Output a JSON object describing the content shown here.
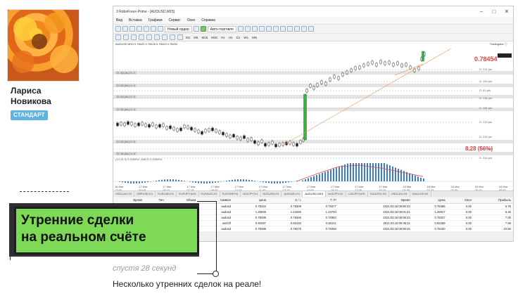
{
  "profile": {
    "name": "Лариса\nНовикова",
    "badge": "СТАНДАРТ"
  },
  "terminal": {
    "title": "3 RoboForex-Prime - [AUDUSD,M15]",
    "menu": [
      "Вид",
      "Вставка",
      "Графики",
      "Сервис",
      "Окно",
      "Справка"
    ],
    "toolbar_new_order": "Новый ордер",
    "toolbar_autotrade": "Авто-торговля",
    "timeframes": [
      "M1",
      "M5",
      "M15",
      "M30",
      "H1",
      "H4",
      "D1",
      "W1",
      "MN"
    ],
    "chart_header": "AUDUSD,M15  0.78423 0.78426 0.78423 0.78454",
    "tradingcentral": "Tradingator ⓘ",
    "current_price": "0.78454",
    "pnl": "8.28 (56%)",
    "level_labels": [
      "D: 221 pts",
      "D: 184 pts",
      "D: 91 pts",
      "D: 136 pts",
      "D: 181 pts",
      "D: 229 pts",
      "D: 233 pts",
      "D: 272 pts",
      "D: 316 pts"
    ],
    "left_labels": [
      "D: 36 pts | h: 2",
      "D: 36 pts | h: 4",
      "D: 36 pts | h: 3",
      "D: 36 pts | h: 4",
      "D: 36 pts | h: 5",
      "D: 36 pts | h: 6"
    ],
    "indicator_label": "(12,26,9) 0.000894 -MACD 0.000894",
    "time_labels": [
      "16 Mar 13:30",
      "17 Mar 05:45",
      "17 Mar 06:15",
      "17 Mar 07:15",
      "17 Mar 08:45",
      "17 Mar 10:15",
      "17 Mar 11:45",
      "17 Mar 13:15",
      "17 Mar 14:45",
      "17 Mar 16:15",
      "17 Mar 17:45",
      "17 Mar 19:15",
      "18 Mar 00:45",
      "18 Mar 02:15",
      "18 Mar 03:45",
      "18 Mar 05:15",
      "18 Mar 06:45"
    ],
    "chart_tabs": [
      "USDCAD,H1",
      "GBPUSD,H1",
      "EURUSD,H1",
      "EURJPY,M15",
      "EURAUD,H1",
      "EURGBP,H4",
      "NZDJPY,H1",
      "NZDUSD,H1",
      "AUDNZD,H1",
      "AUDUSD,M15",
      "AUDJPY,H1",
      "CADJPY,M30",
      "XAUUSD,H4",
      "USDCAD,H1",
      "XAUUSD,H1"
    ],
    "table_headers": [
      "Время",
      "Тип",
      "Объем",
      "Символ",
      "Цена",
      "S / L",
      "T / P",
      "Время",
      "Цена",
      "Своп",
      "Прибыль"
    ],
    "trades": [
      [
        "",
        "buy",
        "0.25",
        "audusd",
        "0.78442",
        "0.78309",
        "0.78477",
        "2021.03.18 09:56:33",
        "0.78486",
        "0.00",
        "5.75"
      ],
      [
        "",
        "sell",
        "0.25",
        "audusd",
        "1.25949",
        "1.24285",
        "1.23740",
        "2021.03.18 09:01:21",
        "1.25917",
        "0.00",
        "6.46"
      ],
      [
        "",
        "buy",
        "0.25",
        "audusd",
        "0.78299",
        "0.78286",
        "0.78383",
        "2021.03.18 08:09:23",
        "0.78327",
        "0.00",
        "7.00"
      ],
      [
        "",
        "sell",
        "0.25",
        "usdchf",
        "0.92297",
        "0.92433",
        "0.92211",
        "2021.03.18 08:45:11",
        "0.92269",
        "0.00",
        "7.59"
      ],
      [
        "",
        "buy",
        "0.25",
        "audusd",
        "0.78388",
        "0.78279",
        "0.78456",
        "2021.03.18 08:59:25",
        "0.78430",
        "0.00",
        "10.50"
      ]
    ]
  },
  "callout": {
    "line1": "Утренние сделки",
    "line2": "на реальном счёте"
  },
  "timestamp": "спустя 28 секунд",
  "caption": "Несколько утренних сделок на реале!"
}
